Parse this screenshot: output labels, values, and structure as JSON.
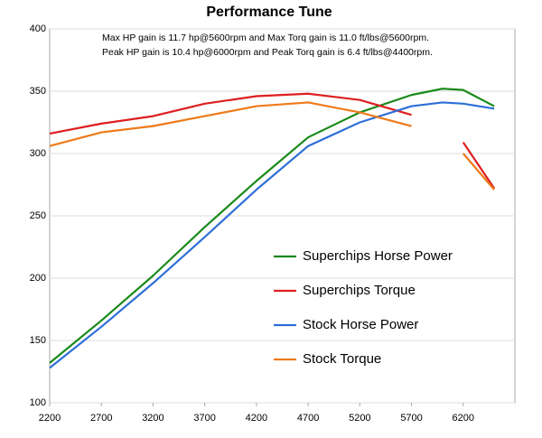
{
  "chart_data": {
    "type": "line",
    "title": "Performance Tune",
    "annotations": [
      "Max HP gain is 11.7 hp@5600rpm and Max Torq gain is 11.0 ft/lbs@5600rpm.",
      "Peak HP gain is 10.4 hp@6000rpm and Peak Torq gain is 6.4 ft/lbs@4400rpm."
    ],
    "x": [
      2200,
      2700,
      3200,
      3700,
      4200,
      4700,
      5200,
      5700,
      6000,
      6200,
      6500
    ],
    "series": [
      {
        "name": "Superchips Horse Power",
        "color": "#1a8a1a",
        "values": [
          132,
          166,
          202,
          241,
          278,
          313,
          333,
          347,
          352,
          351,
          338
        ]
      },
      {
        "name": "Superchips Torque",
        "color": "#dd1f1f",
        "values": [
          316,
          324,
          330,
          340,
          346,
          348,
          343,
          331,
          null,
          309,
          272
        ]
      },
      {
        "name": "Stock Horse Power",
        "color": "#2f6fd6",
        "values": [
          128,
          161,
          196,
          233,
          271,
          306,
          325,
          338,
          341,
          340,
          336
        ]
      },
      {
        "name": "Stock Torque",
        "color": "#ee7a1a",
        "values": [
          306,
          317,
          322,
          330,
          338,
          341,
          333,
          322,
          null,
          300,
          271
        ]
      }
    ],
    "xlim": [
      2200,
      6700
    ],
    "xticks": [
      2200,
      2700,
      3200,
      3700,
      4200,
      4700,
      5200,
      5700,
      6200
    ],
    "ylim": [
      100,
      400
    ],
    "yticks": [
      100,
      150,
      200,
      250,
      300,
      350,
      400
    ],
    "grid": true
  }
}
